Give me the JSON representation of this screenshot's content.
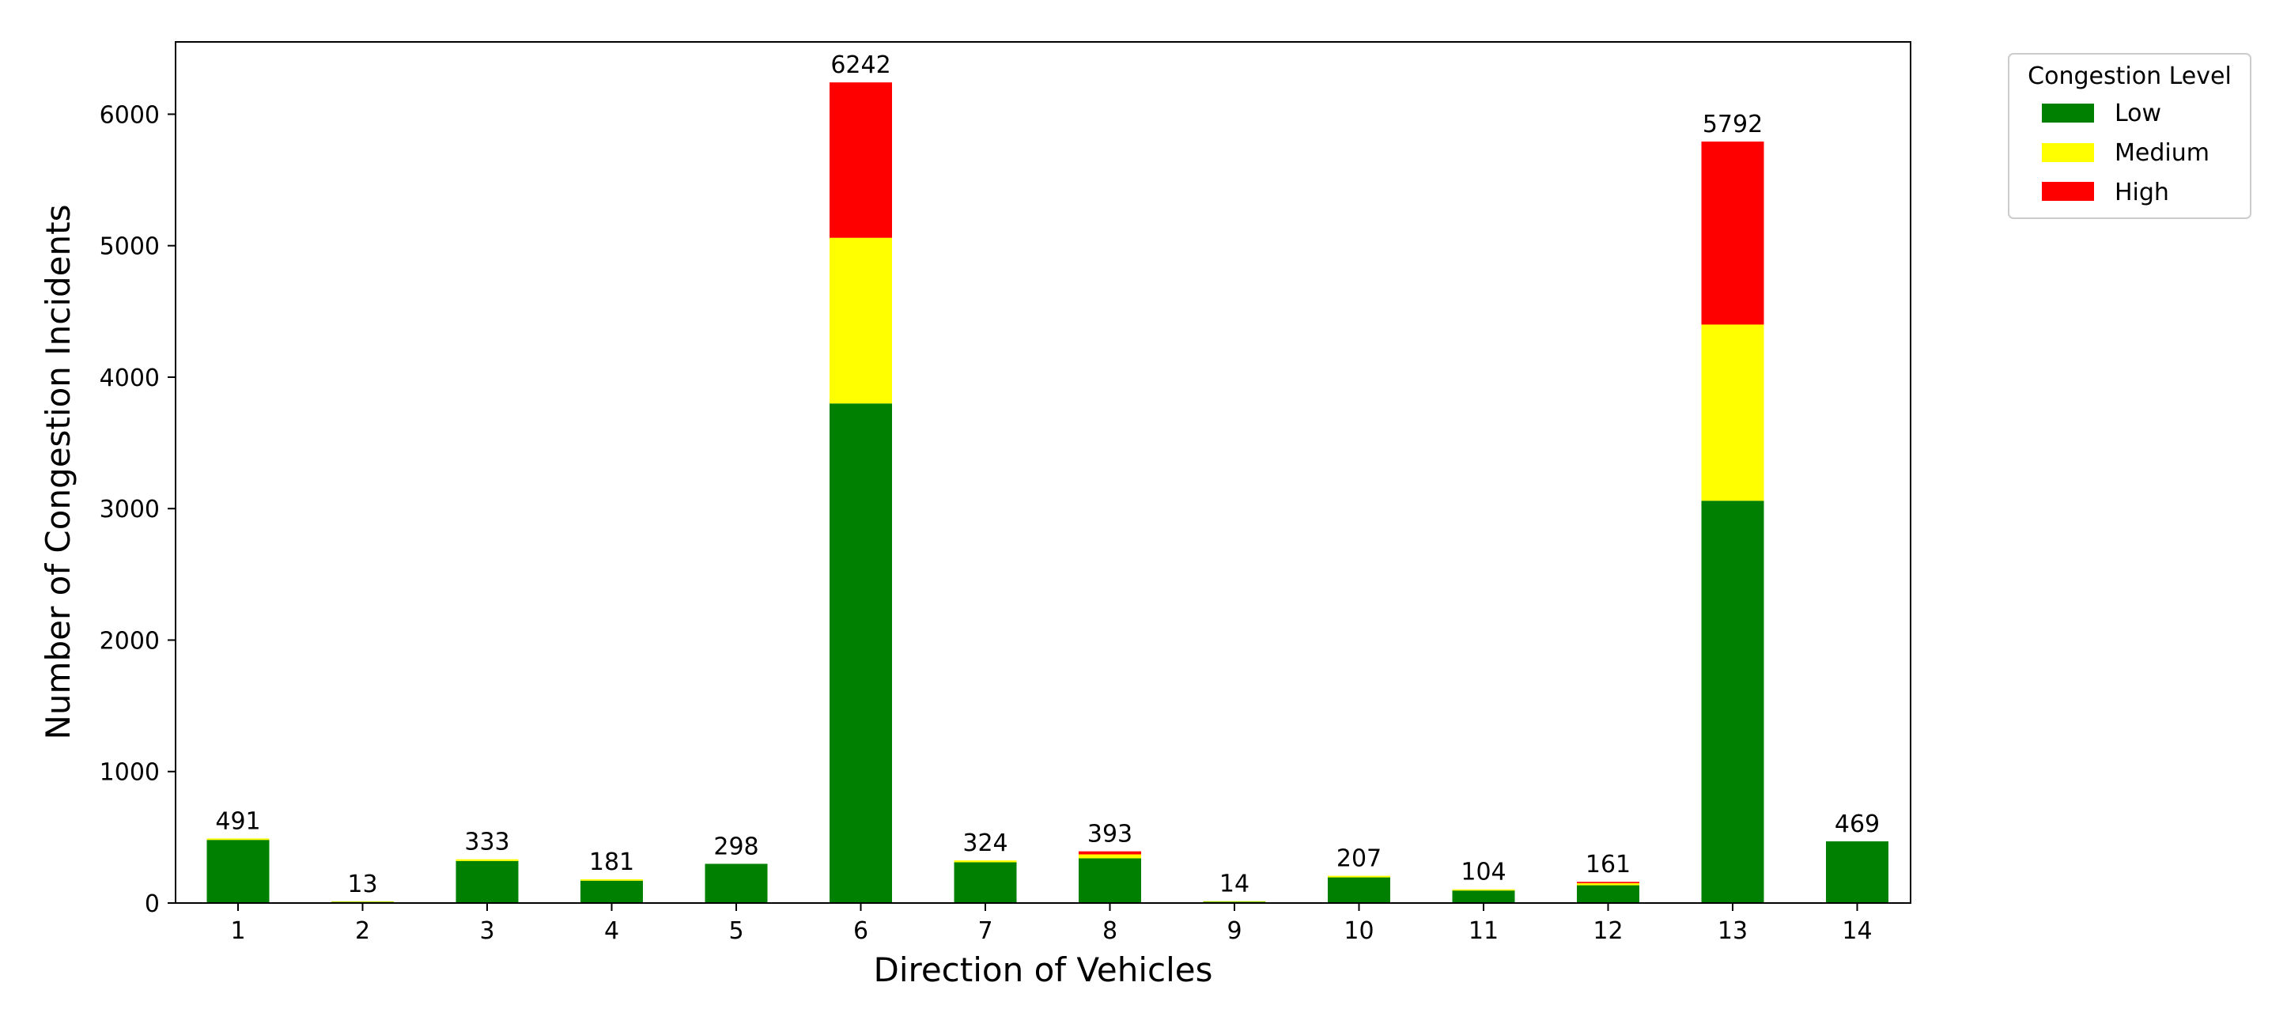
{
  "chart_data": {
    "type": "bar",
    "stacked": true,
    "title": "",
    "xlabel": "Direction of Vehicles",
    "ylabel": "Number of Congestion Incidents",
    "categories": [
      "1",
      "2",
      "3",
      "4",
      "5",
      "6",
      "7",
      "8",
      "9",
      "10",
      "11",
      "12",
      "13",
      "14"
    ],
    "series": [
      {
        "name": "Low",
        "color": "#008000",
        "values": [
          480,
          10,
          320,
          170,
          298,
          3800,
          310,
          340,
          12,
          195,
          95,
          135,
          3060,
          469
        ]
      },
      {
        "name": "Medium",
        "color": "#ffff00",
        "values": [
          11,
          3,
          13,
          11,
          0,
          1260,
          14,
          30,
          2,
          12,
          9,
          16,
          1340,
          0
        ]
      },
      {
        "name": "High",
        "color": "#ff0000",
        "values": [
          0,
          0,
          0,
          0,
          0,
          1182,
          0,
          23,
          0,
          0,
          0,
          10,
          1392,
          0
        ]
      }
    ],
    "totals": [
      491,
      13,
      333,
      181,
      298,
      6242,
      324,
      393,
      14,
      207,
      104,
      161,
      5792,
      469
    ],
    "ylim": [
      0,
      6550
    ],
    "yticks": [
      0,
      1000,
      2000,
      3000,
      4000,
      5000,
      6000
    ],
    "grid": false,
    "legend": {
      "title": "Congestion Level",
      "position": "outside-top-right"
    }
  }
}
